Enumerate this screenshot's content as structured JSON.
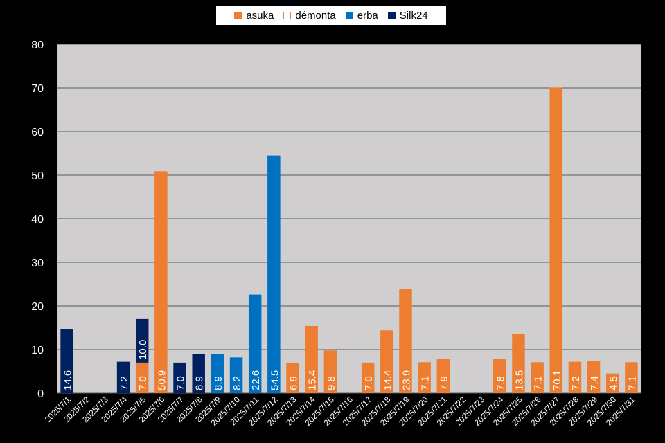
{
  "chart_data": {
    "type": "bar",
    "stacked": true,
    "categories": [
      "2025/7/1",
      "2025/7/2",
      "2025/7/3",
      "2025/7/4",
      "2025/7/5",
      "2025/7/6",
      "2025/7/7",
      "2025/7/8",
      "2025/7/9",
      "2025/7/10",
      "2025/7/11",
      "2025/7/12",
      "2025/7/13",
      "2025/7/14",
      "2025/7/15",
      "2025/7/16",
      "2025/7/17",
      "2025/7/18",
      "2025/7/19",
      "2025/7/20",
      "2025/7/21",
      "2025/7/22",
      "2025/7/23",
      "2025/7/24",
      "2025/7/25",
      "2025/7/26",
      "2025/7/27",
      "2025/7/28",
      "2025/7/29",
      "2025/7/30",
      "2025/7/31"
    ],
    "series": [
      {
        "name": "asuka",
        "color": "#ED7D31",
        "values": [
          null,
          null,
          null,
          null,
          7.0,
          50.9,
          null,
          null,
          null,
          null,
          null,
          null,
          6.9,
          15.4,
          9.8,
          null,
          7.0,
          14.4,
          23.9,
          7.1,
          7.9,
          null,
          null,
          7.8,
          13.5,
          7.1,
          70.1,
          7.2,
          7.4,
          4.5,
          7.1
        ]
      },
      {
        "name": "démonta",
        "color": "#ED7D31",
        "hollow": true,
        "values": [
          null,
          null,
          null,
          null,
          null,
          null,
          null,
          null,
          null,
          null,
          null,
          null,
          null,
          null,
          null,
          null,
          null,
          null,
          null,
          null,
          null,
          null,
          null,
          null,
          null,
          null,
          null,
          null,
          null,
          null,
          null
        ]
      },
      {
        "name": "erba",
        "color": "#0070C0",
        "values": [
          null,
          null,
          null,
          null,
          null,
          null,
          null,
          null,
          8.9,
          8.2,
          22.6,
          54.5,
          null,
          null,
          null,
          null,
          null,
          null,
          null,
          null,
          null,
          null,
          null,
          null,
          null,
          null,
          null,
          null,
          null,
          null,
          null
        ]
      },
      {
        "name": "Silk24",
        "color": "#002060",
        "values": [
          14.6,
          null,
          null,
          7.2,
          10.0,
          null,
          7.0,
          8.9,
          null,
          null,
          null,
          null,
          null,
          null,
          null,
          null,
          null,
          null,
          null,
          null,
          null,
          null,
          null,
          null,
          null,
          null,
          null,
          null,
          null,
          null,
          null
        ]
      }
    ],
    "ylim": [
      0,
      80
    ],
    "yticks": [
      0,
      10,
      20,
      30,
      40,
      50,
      60,
      70,
      80
    ],
    "grid": true,
    "legend": "top",
    "plot_background": "#D0CECE",
    "data_label_format": "0.0"
  }
}
